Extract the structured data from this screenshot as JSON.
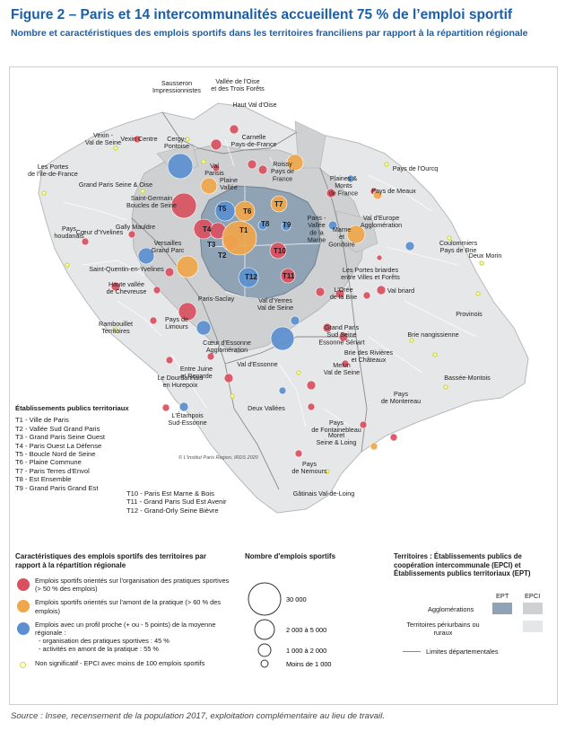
{
  "header": {
    "title": "Figure 2 – Paris et 14 intercommunalités accueillent 75 % de l’emploi sportif",
    "subtitle": "Nombre et caractéristiques des emplois sportifs dans les territoires franciliens par rapport à la répartition régionale"
  },
  "map": {
    "credit": "© L'Institut Paris Region, IRDS 2020",
    "labels": {
      "sausseron": [
        "Sausseron",
        "Impressionnistes"
      ],
      "vallee_oise": [
        "Vallée de l'Oise",
        "et des Trois Forêts"
      ],
      "haut_val_oise": [
        "Haut Val d'Oise"
      ],
      "vexin_seine": [
        "Vexin -",
        "Val de Seine"
      ],
      "vexin_centre": [
        "Vexin Centre"
      ],
      "carnelle": [
        "Carnelle",
        "Pays-de-France"
      ],
      "cergy": [
        "Cergy-",
        "Pontoise"
      ],
      "val_parisis": [
        "Val",
        "Parisis"
      ],
      "roissy": [
        "Roissy",
        "Pays de",
        "France"
      ],
      "pays_ourcq": [
        "Pays de l'Ourcq"
      ],
      "portes_idf": [
        "Les Portes",
        "de l'Île-de-France"
      ],
      "gps_oise": [
        "Grand Paris Seine & Oise"
      ],
      "plaine_vallee": [
        "Plaine",
        "Vallée"
      ],
      "plaines_monts": [
        "Plaines &",
        "Monts",
        "de France"
      ],
      "pays_meaux": [
        "Pays de Meaux"
      ],
      "saint_germain": [
        "Saint-Germain",
        "Boucles de Seine"
      ],
      "paris_vallee_marne": [
        "Paris -",
        "Vallée",
        "de la",
        "Marne"
      ],
      "marne_gondoire": [
        "Marne",
        "et",
        "Gondoire"
      ],
      "val_europe": [
        "Val d'Europe",
        "Agglomération"
      ],
      "gally_mauldre": [
        "Gally Mauldre"
      ],
      "pays_houdanais": [
        "Pays",
        "houdanais"
      ],
      "coeur_yvelines": [
        "Cœur d'Yvelines"
      ],
      "versailles": [
        "Versailles",
        "Grand Parc"
      ],
      "coulommiers": [
        "Coulommiers",
        "Pays de Brie"
      ],
      "deux_morin": [
        "Deux Morin"
      ],
      "sqy": [
        "Saint-Quentin-en-Yvelines"
      ],
      "portes_briardes": [
        "Les Portes briardes",
        "entre Villes et Forêts"
      ],
      "haute_vallee": [
        "Haute vallée",
        "de Chevreuse"
      ],
      "val_yerres": [
        "Val d'Yerres",
        "Val de Seine"
      ],
      "oree_brie": [
        "L'Orée",
        "de la Brie"
      ],
      "val_briard": [
        "Val briard"
      ],
      "paris_saclay": [
        "Paris-Saclay"
      ],
      "rambouillet": [
        "Rambouillet",
        "Territoires"
      ],
      "pays_limours": [
        "Pays de",
        "Limours"
      ],
      "provinois": [
        "Provinois"
      ],
      "gps_sud": [
        "Grand Paris",
        "Sud Seine",
        "Essonne Sénart"
      ],
      "brie_nangissienne": [
        "Brie nangissienne"
      ],
      "coeur_essonne": [
        "Cœur d'Essonne",
        "Agglomération"
      ],
      "brie_rivieres": [
        "Brie des Rivières",
        "et Châteaux"
      ],
      "entre_juine": [
        "Entre Juine",
        "et Renarde"
      ],
      "val_essonne": [
        "Val d'Essonne"
      ],
      "melun": [
        "Melun",
        "Val de Seine"
      ],
      "dourdannais": [
        "Le Dourdannais",
        "en Hurepoix"
      ],
      "bassee": [
        "Bassée-Montois"
      ],
      "deux_vallees": [
        "Deux Vallées"
      ],
      "pays_fontainebleau": [
        "Pays",
        "de Fontainebleau"
      ],
      "etampois": [
        "L'Étampois",
        "Sud-Essonne"
      ],
      "pays_montereau": [
        "Pays",
        "de Montereau"
      ],
      "moret": [
        "Moret",
        "Seine & Loing"
      ],
      "pays_nemours": [
        "Pays",
        "de Nemours"
      ],
      "gatinais": [
        "Gâtinais Val-de-Loing"
      ]
    },
    "territory_codes": [
      "T1",
      "T2",
      "T3",
      "T4",
      "T5",
      "T6",
      "T7",
      "T8",
      "T9",
      "T10",
      "T11",
      "T12"
    ]
  },
  "ept_legend": {
    "heading": "Établissements publics territoriaux",
    "items": [
      "T1 - Ville de Paris",
      "T2 - Vallée Sud Grand Paris",
      "T3 - Grand Paris Seine Ouest",
      "T4 - Paris Ouest La Défense",
      "T5 - Boucle Nord de Seine",
      "T6 - Plaine Commune",
      "T7 - Paris Terres d'Envol",
      "T8 - Est Ensemble",
      "T9 - Grand Paris Grand Est"
    ],
    "items2": [
      "T10 - Paris Est Marne & Bois",
      "T11 - Grand Paris Sud Est Avenir",
      "T12 - Grand-Orly Seine Bièvre"
    ]
  },
  "legend_caract": {
    "heading": "Caractéristiques des emplois sportifs des territoires par rapport à la répartition régionale",
    "items": [
      {
        "text": "Emplois sportifs orientés sur l'organisation des pratiques sportives (> 50 % des emplois)",
        "color": "#d9505f"
      },
      {
        "text": "Emplois sportifs orientés sur l'amont de la pratique (> 60 % des emplois)",
        "color": "#f0a64a"
      },
      {
        "text": "Emplois avec un profil proche (+ ou - 5 points) de la moyenne régionale :",
        "color": "#5b8fcf",
        "sub": [
          "- organisation des pratiques sportives : 45 %",
          "- activités en amont de la pratique : 55 %"
        ]
      },
      {
        "text": "Non significatif - EPCI avec moins de 100 emplois sportifs",
        "color": "#e8ef3a"
      }
    ]
  },
  "legend_size": {
    "heading": "Nombre d'emplois sportifs",
    "items": [
      "30 000",
      "2 000 à 5 000",
      "1 000 à 2 000",
      "Moins de 1 000"
    ]
  },
  "legend_terr": {
    "heading": "Territoires : Établissements publics de coopération intercommunale (EPCI) et Établissements publics territoriaux (EPT)",
    "col_ept": "EPT",
    "col_epci": "EPCI",
    "row1": "Agglomérations",
    "row2": "Territoires périurbains ou ruraux",
    "row3": "Limites départementales",
    "colors": {
      "ept_agglo": "#8fa3b4",
      "epci_agglo": "#cfd0d2",
      "epci_rural": "#e5e6e7"
    }
  },
  "source": "Source : Insee, recensement de la population 2017, exploitation complémentaire au lieu de travail."
}
